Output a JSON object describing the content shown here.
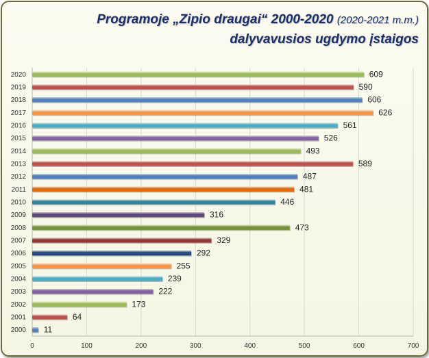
{
  "chart_data": {
    "type": "bar",
    "orientation": "horizontal",
    "title_main": "Programoje „Zipio draugai“ 2000-2020",
    "title_paren": "(2020-2021 m.m.)",
    "subtitle": "dalyvavusios ugdymo įstaigos",
    "categories": [
      "2000",
      "2001",
      "2002",
      "2003",
      "2004",
      "2005",
      "2006",
      "2007",
      "2008",
      "2009",
      "2010",
      "2011",
      "2012",
      "2013",
      "2014",
      "2015",
      "2016",
      "2017",
      "2018",
      "2019",
      "2020"
    ],
    "values": [
      11,
      64,
      173,
      222,
      239,
      255,
      292,
      329,
      473,
      316,
      446,
      481,
      487,
      589,
      493,
      526,
      561,
      626,
      606,
      590,
      609
    ],
    "colors": [
      "#4f81bd",
      "#c0504d",
      "#9bbb59",
      "#8064a2",
      "#4bacc6",
      "#f79646",
      "#1f497d",
      "#943634",
      "#76923c",
      "#5f497a",
      "#31859b",
      "#e36c09",
      "#4f81bd",
      "#c0504d",
      "#9bbb59",
      "#8064a2",
      "#4bacc6",
      "#f79646",
      "#4f81bd",
      "#c0504d",
      "#9bbb59"
    ],
    "xlim": [
      0,
      700
    ],
    "xticks": [
      0,
      100,
      200,
      300,
      400,
      500,
      600,
      700
    ],
    "grid": true
  }
}
